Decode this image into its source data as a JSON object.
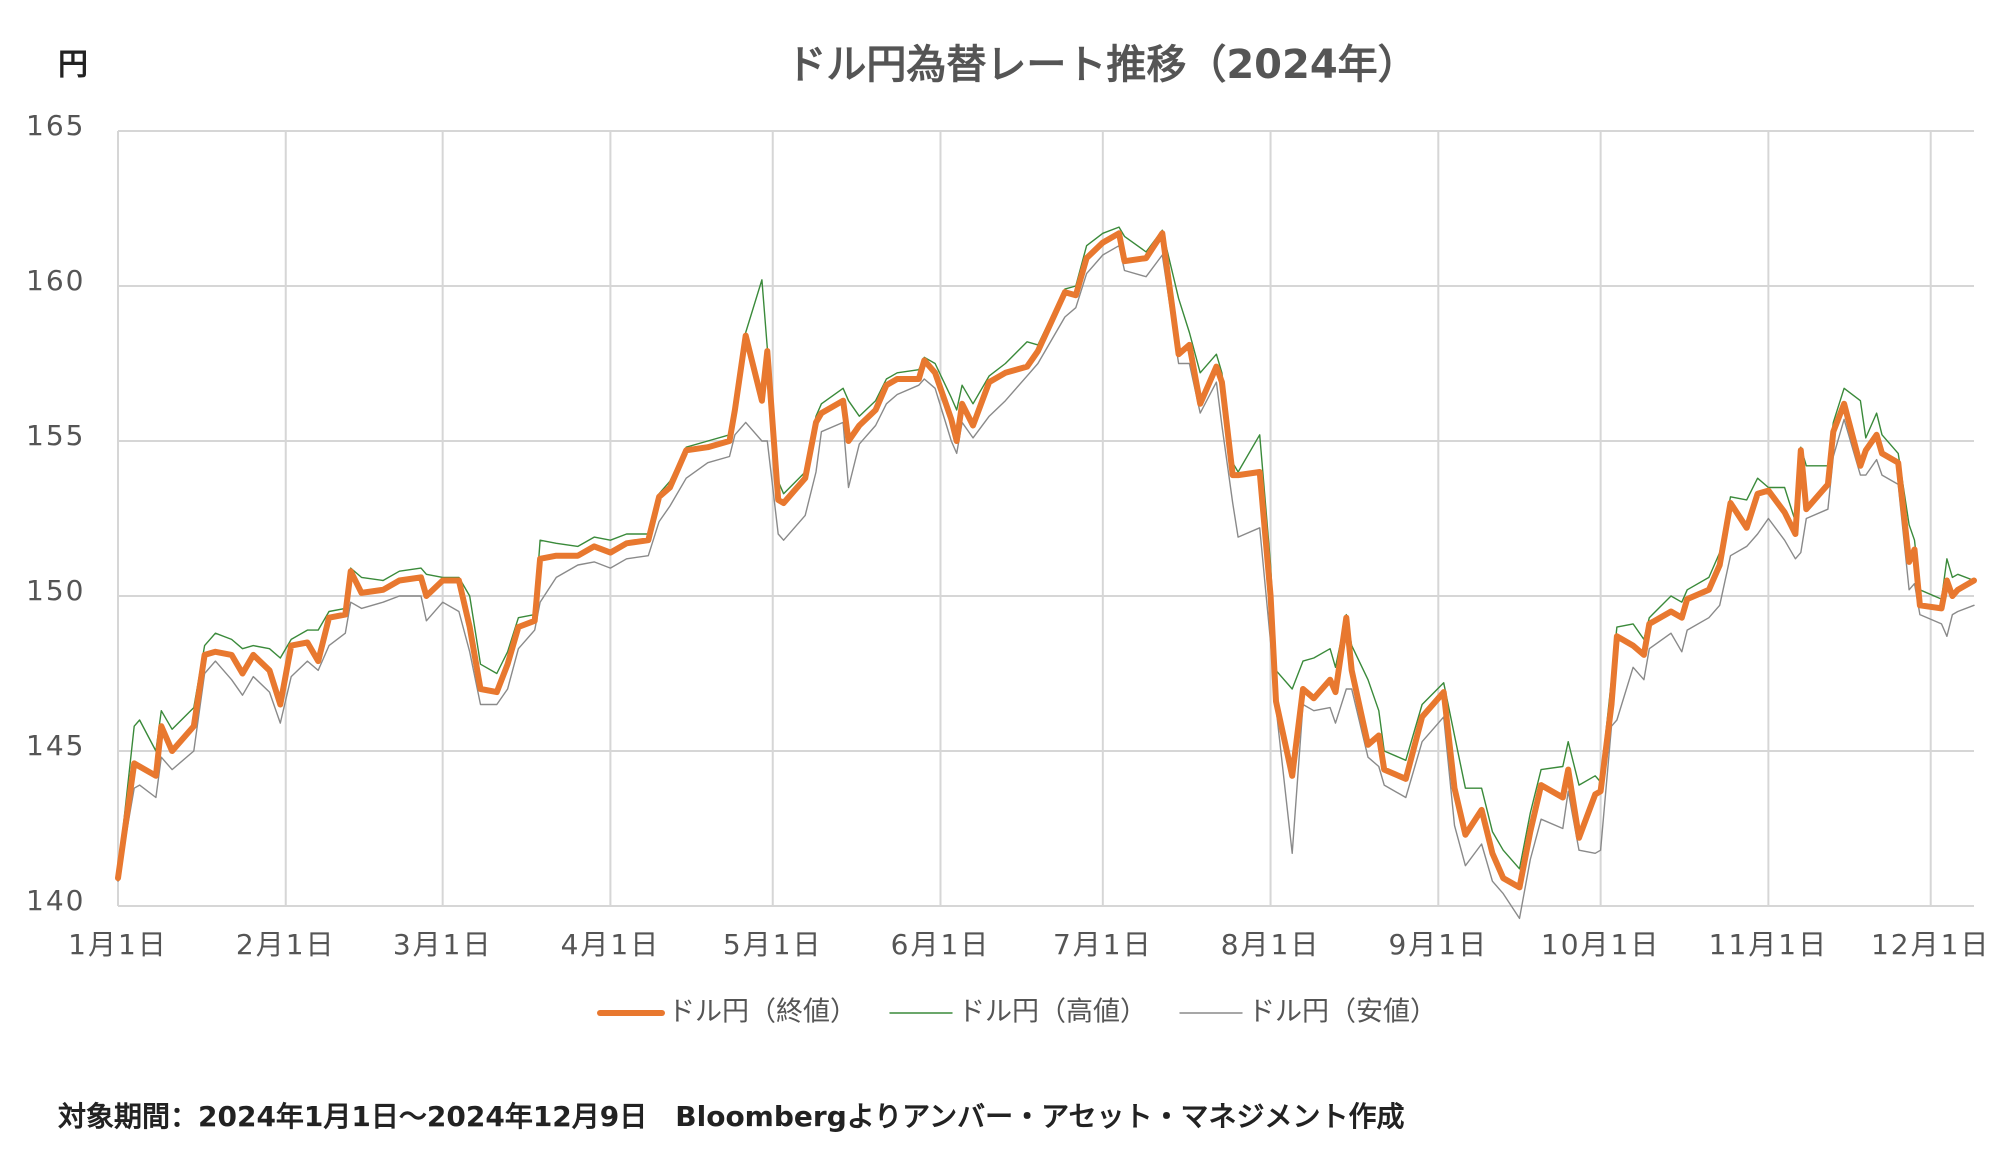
{
  "chart_data": {
    "type": "line",
    "title": "ドル円為替レート推移（2024年）",
    "ylabel": "円",
    "note": "対象期間：2024年1月1日～2024年12月9日　Bloombergよりアンバー・アセット・マネジメント作成",
    "x": [
      "2024-01-01",
      "2024-01-04",
      "2024-01-05",
      "2024-01-08",
      "2024-01-09",
      "2024-01-11",
      "2024-01-15",
      "2024-01-17",
      "2024-01-19",
      "2024-01-22",
      "2024-01-24",
      "2024-01-26",
      "2024-01-29",
      "2024-01-31",
      "2024-02-02",
      "2024-02-05",
      "2024-02-07",
      "2024-02-09",
      "2024-02-12",
      "2024-02-13",
      "2024-02-15",
      "2024-02-19",
      "2024-02-22",
      "2024-02-26",
      "2024-02-27",
      "2024-03-01",
      "2024-03-04",
      "2024-03-06",
      "2024-03-08",
      "2024-03-11",
      "2024-03-13",
      "2024-03-15",
      "2024-03-18",
      "2024-03-19",
      "2024-03-22",
      "2024-03-26",
      "2024-03-29",
      "2024-04-01",
      "2024-04-04",
      "2024-04-08",
      "2024-04-10",
      "2024-04-12",
      "2024-04-15",
      "2024-04-19",
      "2024-04-23",
      "2024-04-24",
      "2024-04-26",
      "2024-04-29",
      "2024-04-30",
      "2024-05-02",
      "2024-05-03",
      "2024-05-07",
      "2024-05-09",
      "2024-05-10",
      "2024-05-14",
      "2024-05-15",
      "2024-05-17",
      "2024-05-20",
      "2024-05-22",
      "2024-05-24",
      "2024-05-28",
      "2024-05-29",
      "2024-05-31",
      "2024-06-03",
      "2024-06-04",
      "2024-06-05",
      "2024-06-07",
      "2024-06-10",
      "2024-06-13",
      "2024-06-17",
      "2024-06-19",
      "2024-06-24",
      "2024-06-26",
      "2024-06-28",
      "2024-07-01",
      "2024-07-04",
      "2024-07-05",
      "2024-07-09",
      "2024-07-12",
      "2024-07-15",
      "2024-07-17",
      "2024-07-19",
      "2024-07-22",
      "2024-07-23",
      "2024-07-25",
      "2024-07-26",
      "2024-07-30",
      "2024-08-01",
      "2024-08-02",
      "2024-08-05",
      "2024-08-07",
      "2024-08-09",
      "2024-08-12",
      "2024-08-13",
      "2024-08-15",
      "2024-08-16",
      "2024-08-19",
      "2024-08-21",
      "2024-08-22",
      "2024-08-26",
      "2024-08-29",
      "2024-09-02",
      "2024-09-04",
      "2024-09-06",
      "2024-09-09",
      "2024-09-11",
      "2024-09-13",
      "2024-09-16",
      "2024-09-18",
      "2024-09-20",
      "2024-09-24",
      "2024-09-25",
      "2024-09-27",
      "2024-09-30",
      "2024-10-01",
      "2024-10-03",
      "2024-10-04",
      "2024-10-07",
      "2024-10-09",
      "2024-10-10",
      "2024-10-14",
      "2024-10-16",
      "2024-10-17",
      "2024-10-21",
      "2024-10-23",
      "2024-10-25",
      "2024-10-28",
      "2024-10-30",
      "2024-11-01",
      "2024-11-04",
      "2024-11-06",
      "2024-11-07",
      "2024-11-08",
      "2024-11-12",
      "2024-11-13",
      "2024-11-15",
      "2024-11-18",
      "2024-11-19",
      "2024-11-21",
      "2024-11-22",
      "2024-11-25",
      "2024-11-27",
      "2024-11-28",
      "2024-11-29",
      "2024-12-03",
      "2024-12-04",
      "2024-12-05",
      "2024-12-06",
      "2024-12-09"
    ],
    "series": [
      {
        "name": "ドル円（終値）",
        "color": "#e8782f",
        "width": 6,
        "values": [
          140.9,
          144.6,
          144.5,
          144.2,
          145.8,
          145.0,
          145.8,
          148.1,
          148.2,
          148.1,
          147.5,
          148.1,
          147.6,
          146.5,
          148.4,
          148.5,
          147.9,
          149.3,
          149.4,
          150.8,
          150.1,
          150.2,
          150.5,
          150.6,
          150.0,
          150.5,
          150.5,
          149.0,
          147.0,
          146.9,
          147.8,
          149.0,
          149.2,
          151.2,
          151.3,
          151.3,
          151.6,
          151.4,
          151.7,
          151.8,
          153.2,
          153.5,
          154.7,
          154.8,
          155.0,
          156.0,
          158.4,
          156.3,
          157.9,
          153.1,
          153.0,
          153.8,
          155.6,
          155.9,
          156.3,
          155.0,
          155.5,
          156.0,
          156.8,
          157.0,
          157.0,
          157.6,
          157.2,
          155.7,
          155.0,
          156.2,
          155.5,
          156.9,
          157.2,
          157.4,
          157.9,
          159.8,
          159.7,
          160.9,
          161.4,
          161.7,
          160.8,
          160.9,
          161.7,
          157.8,
          158.1,
          156.2,
          157.4,
          156.9,
          153.9,
          153.9,
          154.0,
          150.0,
          146.6,
          144.2,
          147.0,
          146.7,
          147.3,
          146.9,
          149.3,
          147.6,
          145.2,
          145.5,
          144.4,
          144.1,
          146.1,
          146.9,
          143.8,
          142.3,
          143.1,
          141.7,
          140.9,
          140.6,
          142.4,
          143.9,
          143.5,
          144.4,
          142.2,
          143.6,
          143.7,
          146.5,
          148.7,
          148.4,
          148.1,
          149.1,
          149.5,
          149.3,
          149.9,
          150.2,
          151.0,
          153.0,
          152.2,
          153.3,
          153.4,
          152.7,
          152.0,
          154.7,
          152.8,
          153.6,
          155.3,
          156.2,
          154.2,
          154.7,
          155.2,
          154.6,
          154.3,
          151.1,
          151.5,
          149.7,
          149.6,
          150.5,
          150.0,
          150.2,
          150.5
        ]
      },
      {
        "name": "ドル円（高値）",
        "color": "#3a8a3a",
        "width": 1.4,
        "values": [
          141.0,
          145.8,
          146.0,
          145.0,
          146.3,
          145.7,
          146.4,
          148.4,
          148.8,
          148.6,
          148.3,
          148.4,
          148.3,
          148.0,
          148.6,
          148.9,
          148.9,
          149.5,
          149.6,
          150.9,
          150.6,
          150.5,
          150.8,
          150.9,
          150.7,
          150.6,
          150.6,
          150.0,
          147.8,
          147.5,
          148.2,
          149.3,
          149.4,
          151.8,
          151.7,
          151.6,
          151.9,
          151.8,
          152.0,
          152.0,
          153.3,
          153.7,
          154.8,
          155.0,
          155.2,
          156.2,
          158.5,
          160.2,
          158.0,
          153.7,
          153.3,
          154.0,
          155.8,
          156.2,
          156.7,
          156.3,
          155.8,
          156.3,
          157.0,
          157.2,
          157.3,
          157.7,
          157.5,
          156.4,
          156.0,
          156.8,
          156.2,
          157.1,
          157.5,
          158.2,
          158.1,
          159.9,
          160.0,
          161.3,
          161.7,
          161.9,
          161.6,
          161.1,
          161.8,
          159.6,
          158.5,
          157.2,
          157.8,
          157.2,
          154.3,
          154.0,
          155.2,
          151.0,
          147.6,
          147.0,
          147.9,
          148.0,
          148.3,
          147.7,
          149.4,
          148.4,
          147.3,
          146.3,
          145.0,
          144.7,
          146.5,
          147.2,
          145.5,
          143.8,
          143.8,
          142.4,
          141.8,
          141.2,
          143.0,
          144.4,
          144.5,
          145.3,
          143.9,
          144.2,
          144.0,
          147.3,
          149.0,
          149.1,
          148.6,
          149.3,
          150.0,
          149.8,
          150.2,
          150.6,
          151.4,
          153.2,
          153.1,
          153.8,
          153.5,
          153.5,
          152.4,
          154.8,
          154.2,
          154.2,
          155.6,
          156.7,
          156.3,
          155.1,
          155.9,
          155.2,
          154.6,
          152.3,
          151.8,
          150.2,
          149.9,
          151.2,
          150.6,
          150.7,
          150.5
        ]
      },
      {
        "name": "ドル円（安値）",
        "color": "#8a8a8a",
        "width": 1.4,
        "values": [
          140.8,
          143.8,
          143.9,
          143.5,
          144.8,
          144.4,
          145.0,
          147.5,
          147.9,
          147.3,
          146.8,
          147.4,
          146.9,
          145.9,
          147.4,
          147.9,
          147.6,
          148.4,
          148.8,
          149.8,
          149.6,
          149.8,
          150.0,
          150.0,
          149.2,
          149.8,
          149.5,
          148.2,
          146.5,
          146.5,
          147.0,
          148.3,
          148.9,
          149.8,
          150.6,
          151.0,
          151.1,
          150.9,
          151.2,
          151.3,
          152.4,
          152.9,
          153.8,
          154.3,
          154.5,
          155.2,
          155.6,
          155.0,
          155.0,
          152.0,
          151.8,
          152.6,
          154.0,
          155.3,
          155.6,
          153.5,
          154.9,
          155.5,
          156.2,
          156.5,
          156.8,
          157.0,
          156.7,
          155.0,
          154.6,
          155.6,
          155.1,
          155.8,
          156.3,
          157.1,
          157.5,
          159.0,
          159.3,
          160.4,
          161.0,
          161.3,
          160.5,
          160.3,
          161.0,
          157.5,
          157.5,
          155.9,
          156.9,
          155.5,
          153.0,
          151.9,
          152.2,
          148.5,
          146.4,
          141.7,
          146.5,
          146.3,
          146.4,
          145.9,
          147.0,
          147.0,
          144.8,
          144.5,
          143.9,
          143.5,
          145.3,
          146.1,
          142.6,
          141.3,
          142.0,
          140.8,
          140.4,
          139.6,
          141.5,
          142.8,
          142.5,
          143.7,
          141.8,
          141.7,
          141.8,
          145.8,
          146.0,
          147.7,
          147.3,
          148.3,
          148.8,
          148.2,
          148.9,
          149.3,
          149.7,
          151.3,
          151.6,
          152.0,
          152.5,
          151.8,
          151.2,
          151.4,
          152.5,
          152.8,
          154.5,
          155.7,
          153.9,
          153.9,
          154.4,
          153.9,
          153.6,
          150.2,
          150.4,
          149.4,
          149.1,
          148.7,
          149.4,
          149.5,
          149.7
        ]
      }
    ],
    "xlim": [
      "2024-01-01",
      "2024-12-09"
    ],
    "xticks": [
      {
        "value": "2024-01-01",
        "label": "1月1日"
      },
      {
        "value": "2024-02-01",
        "label": "2月1日"
      },
      {
        "value": "2024-03-01",
        "label": "3月1日"
      },
      {
        "value": "2024-04-01",
        "label": "4月1日"
      },
      {
        "value": "2024-05-01",
        "label": "5月1日"
      },
      {
        "value": "2024-06-01",
        "label": "6月1日"
      },
      {
        "value": "2024-07-01",
        "label": "7月1日"
      },
      {
        "value": "2024-08-01",
        "label": "8月1日"
      },
      {
        "value": "2024-09-01",
        "label": "9月1日"
      },
      {
        "value": "2024-10-01",
        "label": "10月1日"
      },
      {
        "value": "2024-11-01",
        "label": "11月1日"
      },
      {
        "value": "2024-12-01",
        "label": "12月1日"
      }
    ],
    "ylim": [
      140,
      165
    ],
    "yticks": [
      140,
      145,
      150,
      155,
      160,
      165
    ],
    "grid": true,
    "legend": "bottom"
  }
}
